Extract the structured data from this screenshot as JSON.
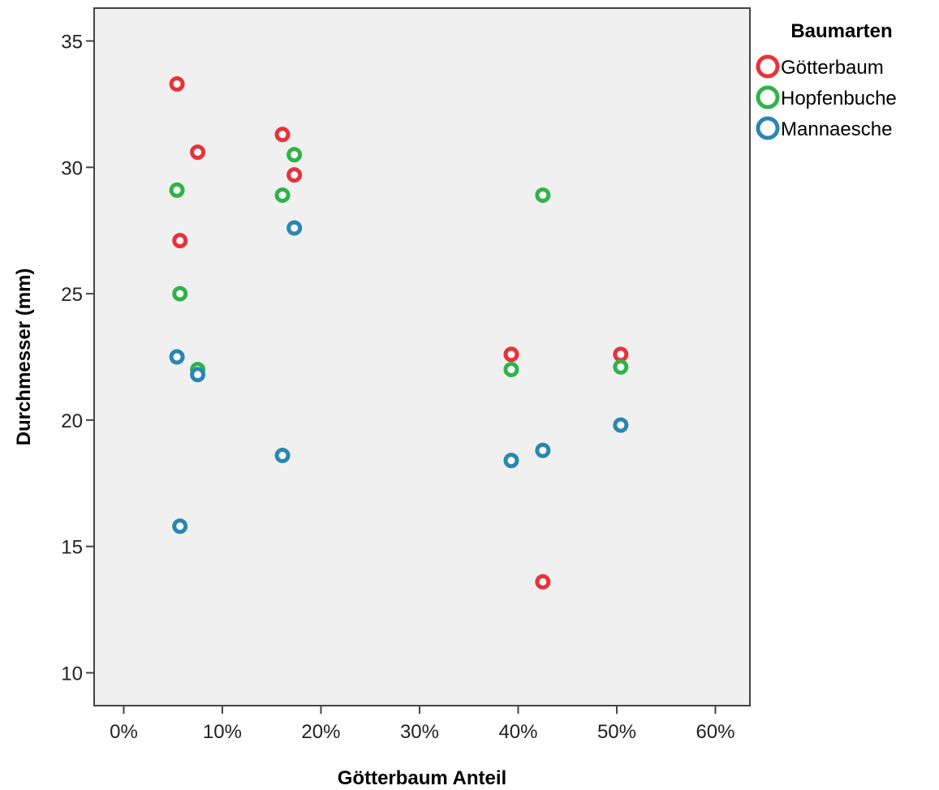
{
  "chart_data": {
    "type": "scatter",
    "title": "",
    "xlabel": "Götterbaum Anteil",
    "ylabel": "Durchmesser (mm)",
    "xlim": [
      -0.03,
      0.635
    ],
    "ylim": [
      8.7,
      36.3
    ],
    "x_ticks": [
      0,
      0.1,
      0.2,
      0.3,
      0.4,
      0.5,
      0.6
    ],
    "x_tick_labels": [
      "0%",
      "10%",
      "20%",
      "30%",
      "40%",
      "50%",
      "60%"
    ],
    "y_ticks": [
      10,
      15,
      20,
      25,
      30,
      35
    ],
    "y_tick_labels": [
      "10",
      "15",
      "20",
      "25",
      "30",
      "35"
    ],
    "grid": false,
    "plot_background": "#f0f0f0",
    "legend": {
      "title": "Baumarten",
      "placement": "right"
    },
    "series": [
      {
        "name": "Götterbaum",
        "color": "#e8333a",
        "points": [
          {
            "x": 0.054,
            "y": 33.3
          },
          {
            "x": 0.075,
            "y": 30.6
          },
          {
            "x": 0.057,
            "y": 27.1
          },
          {
            "x": 0.161,
            "y": 31.3
          },
          {
            "x": 0.173,
            "y": 29.7
          },
          {
            "x": 0.393,
            "y": 22.6
          },
          {
            "x": 0.425,
            "y": 13.6
          },
          {
            "x": 0.504,
            "y": 22.6
          }
        ]
      },
      {
        "name": "Hopfenbuche",
        "color": "#2fb34a",
        "points": [
          {
            "x": 0.054,
            "y": 29.1
          },
          {
            "x": 0.057,
            "y": 25.0
          },
          {
            "x": 0.075,
            "y": 22.0
          },
          {
            "x": 0.161,
            "y": 28.9
          },
          {
            "x": 0.173,
            "y": 30.5
          },
          {
            "x": 0.393,
            "y": 22.0
          },
          {
            "x": 0.425,
            "y": 28.9
          },
          {
            "x": 0.504,
            "y": 22.1
          }
        ]
      },
      {
        "name": "Mannaesche",
        "color": "#2a86b0",
        "points": [
          {
            "x": 0.054,
            "y": 22.5
          },
          {
            "x": 0.057,
            "y": 15.8
          },
          {
            "x": 0.075,
            "y": 21.8
          },
          {
            "x": 0.161,
            "y": 18.6
          },
          {
            "x": 0.173,
            "y": 27.6
          },
          {
            "x": 0.393,
            "y": 18.4
          },
          {
            "x": 0.425,
            "y": 18.8
          },
          {
            "x": 0.504,
            "y": 19.8
          }
        ]
      }
    ]
  }
}
